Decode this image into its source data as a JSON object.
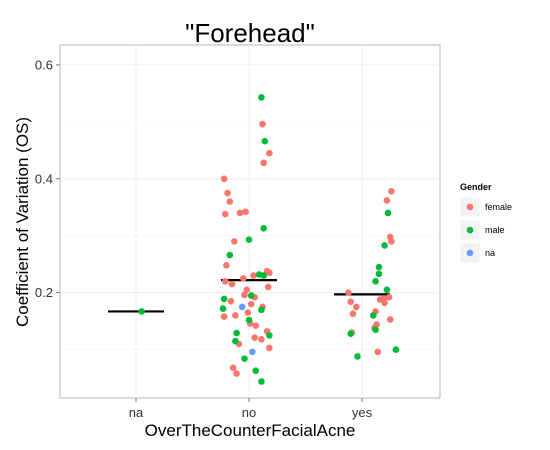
{
  "chart_data": {
    "type": "scatter",
    "subtype": "jittered strip plot with mean bars",
    "title": "\"Forehead\"",
    "xlabel": "OverTheCounterFacialAcne",
    "ylabel": "Coefficient of Variation (OS)",
    "categories": [
      "na",
      "no",
      "yes"
    ],
    "ylim": [
      0.015,
      0.635
    ],
    "yticks": [
      0.2,
      0.4,
      0.6
    ],
    "yticklabels": [
      "0.2",
      "0.4",
      "0.6"
    ],
    "grid": true,
    "legend": {
      "title": "Gender",
      "position": "right",
      "entries": [
        {
          "label": "female",
          "color": "#F8766D"
        },
        {
          "label": "male",
          "color": "#00BA38"
        },
        {
          "label": "na",
          "color": "#619CFF"
        }
      ]
    },
    "means": [
      {
        "category": "na",
        "value": 0.167
      },
      {
        "category": "no",
        "value": 0.222
      },
      {
        "category": "yes",
        "value": 0.197
      }
    ],
    "series": [
      {
        "name": "female",
        "color": "#F8766D",
        "points": [
          {
            "category": "no",
            "offset": -0.22,
            "y": 0.4
          },
          {
            "category": "no",
            "offset": -0.19,
            "y": 0.375
          },
          {
            "category": "no",
            "offset": -0.17,
            "y": 0.36
          },
          {
            "category": "no",
            "offset": -0.21,
            "y": 0.338
          },
          {
            "category": "no",
            "offset": -0.08,
            "y": 0.34
          },
          {
            "category": "no",
            "offset": -0.03,
            "y": 0.342
          },
          {
            "category": "no",
            "offset": 0.12,
            "y": 0.496
          },
          {
            "category": "no",
            "offset": 0.18,
            "y": 0.445
          },
          {
            "category": "no",
            "offset": 0.13,
            "y": 0.428
          },
          {
            "category": "no",
            "offset": -0.13,
            "y": 0.29
          },
          {
            "category": "no",
            "offset": -0.2,
            "y": 0.248
          },
          {
            "category": "no",
            "offset": 0.16,
            "y": 0.238
          },
          {
            "category": "no",
            "offset": 0.18,
            "y": 0.235
          },
          {
            "category": "no",
            "offset": -0.21,
            "y": 0.22
          },
          {
            "category": "no",
            "offset": -0.15,
            "y": 0.215
          },
          {
            "category": "no",
            "offset": -0.05,
            "y": 0.225
          },
          {
            "category": "no",
            "offset": 0.04,
            "y": 0.23
          },
          {
            "category": "no",
            "offset": -0.02,
            "y": 0.205
          },
          {
            "category": "no",
            "offset": 0.17,
            "y": 0.21
          },
          {
            "category": "no",
            "offset": -0.04,
            "y": 0.196
          },
          {
            "category": "no",
            "offset": 0.05,
            "y": 0.192
          },
          {
            "category": "no",
            "offset": -0.16,
            "y": 0.185
          },
          {
            "category": "no",
            "offset": 0.02,
            "y": 0.18
          },
          {
            "category": "no",
            "offset": 0.12,
            "y": 0.175
          },
          {
            "category": "no",
            "offset": -0.01,
            "y": 0.165
          },
          {
            "category": "no",
            "offset": -0.22,
            "y": 0.158
          },
          {
            "category": "no",
            "offset": -0.12,
            "y": 0.16
          },
          {
            "category": "no",
            "offset": 0.01,
            "y": 0.146
          },
          {
            "category": "no",
            "offset": 0.06,
            "y": 0.142
          },
          {
            "category": "no",
            "offset": 0.16,
            "y": 0.132
          },
          {
            "category": "no",
            "offset": 0.05,
            "y": 0.121
          },
          {
            "category": "no",
            "offset": 0.11,
            "y": 0.118
          },
          {
            "category": "no",
            "offset": -0.09,
            "y": 0.11
          },
          {
            "category": "no",
            "offset": 0.18,
            "y": 0.103
          },
          {
            "category": "no",
            "offset": -0.14,
            "y": 0.068
          },
          {
            "category": "no",
            "offset": -0.11,
            "y": 0.058
          },
          {
            "category": "yes",
            "offset": 0.26,
            "y": 0.378
          },
          {
            "category": "yes",
            "offset": 0.22,
            "y": 0.362
          },
          {
            "category": "yes",
            "offset": 0.25,
            "y": 0.298
          },
          {
            "category": "yes",
            "offset": 0.26,
            "y": 0.29
          },
          {
            "category": "yes",
            "offset": -0.12,
            "y": 0.2
          },
          {
            "category": "yes",
            "offset": 0.19,
            "y": 0.19
          },
          {
            "category": "yes",
            "offset": 0.24,
            "y": 0.192
          },
          {
            "category": "yes",
            "offset": -0.1,
            "y": 0.184
          },
          {
            "category": "yes",
            "offset": 0.16,
            "y": 0.188
          },
          {
            "category": "yes",
            "offset": 0.2,
            "y": 0.182
          },
          {
            "category": "yes",
            "offset": -0.05,
            "y": 0.175
          },
          {
            "category": "yes",
            "offset": 0.12,
            "y": 0.167
          },
          {
            "category": "yes",
            "offset": -0.08,
            "y": 0.163
          },
          {
            "category": "yes",
            "offset": 0.25,
            "y": 0.153
          },
          {
            "category": "yes",
            "offset": 0.13,
            "y": 0.144
          },
          {
            "category": "yes",
            "offset": 0.11,
            "y": 0.138
          },
          {
            "category": "yes",
            "offset": -0.09,
            "y": 0.13
          },
          {
            "category": "yes",
            "offset": 0.14,
            "y": 0.096
          }
        ]
      },
      {
        "name": "male",
        "color": "#00BA38",
        "points": [
          {
            "category": "na",
            "offset": 0.05,
            "y": 0.167
          },
          {
            "category": "no",
            "offset": 0.11,
            "y": 0.543
          },
          {
            "category": "no",
            "offset": 0.14,
            "y": 0.466
          },
          {
            "category": "no",
            "offset": 0.13,
            "y": 0.313
          },
          {
            "category": "no",
            "offset": 0.0,
            "y": 0.293
          },
          {
            "category": "no",
            "offset": -0.17,
            "y": 0.266
          },
          {
            "category": "no",
            "offset": 0.09,
            "y": 0.232
          },
          {
            "category": "no",
            "offset": 0.13,
            "y": 0.23
          },
          {
            "category": "no",
            "offset": 0.02,
            "y": 0.195
          },
          {
            "category": "no",
            "offset": -0.22,
            "y": 0.189
          },
          {
            "category": "no",
            "offset": -0.23,
            "y": 0.172
          },
          {
            "category": "no",
            "offset": 0.11,
            "y": 0.17
          },
          {
            "category": "no",
            "offset": 0.0,
            "y": 0.152
          },
          {
            "category": "no",
            "offset": -0.11,
            "y": 0.129
          },
          {
            "category": "no",
            "offset": 0.18,
            "y": 0.125
          },
          {
            "category": "no",
            "offset": -0.12,
            "y": 0.115
          },
          {
            "category": "no",
            "offset": -0.04,
            "y": 0.084
          },
          {
            "category": "no",
            "offset": 0.06,
            "y": 0.063
          },
          {
            "category": "no",
            "offset": 0.11,
            "y": 0.044
          },
          {
            "category": "yes",
            "offset": 0.23,
            "y": 0.34
          },
          {
            "category": "yes",
            "offset": 0.2,
            "y": 0.283
          },
          {
            "category": "yes",
            "offset": 0.15,
            "y": 0.245
          },
          {
            "category": "yes",
            "offset": 0.15,
            "y": 0.233
          },
          {
            "category": "yes",
            "offset": 0.12,
            "y": 0.22
          },
          {
            "category": "yes",
            "offset": 0.22,
            "y": 0.205
          },
          {
            "category": "yes",
            "offset": 0.1,
            "y": 0.16
          },
          {
            "category": "yes",
            "offset": 0.12,
            "y": 0.135
          },
          {
            "category": "yes",
            "offset": -0.1,
            "y": 0.128
          },
          {
            "category": "yes",
            "offset": 0.3,
            "y": 0.1
          },
          {
            "category": "yes",
            "offset": -0.04,
            "y": 0.088
          }
        ]
      },
      {
        "name": "na",
        "color": "#619CFF",
        "points": [
          {
            "category": "no",
            "offset": -0.06,
            "y": 0.175
          },
          {
            "category": "no",
            "offset": 0.03,
            "y": 0.096
          }
        ]
      }
    ]
  }
}
